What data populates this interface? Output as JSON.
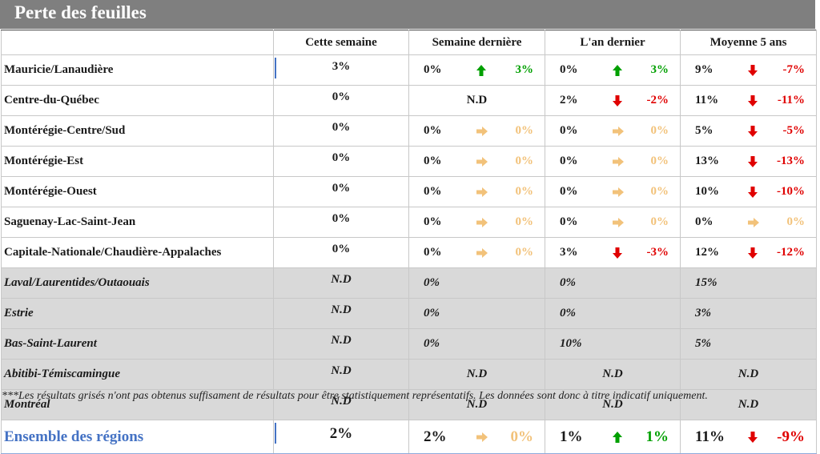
{
  "title": "Perte des feuilles",
  "headers": [
    "Cette semaine",
    "Semaine dernière",
    "L'an dernier",
    "Moyenne 5 ans"
  ],
  "colors": {
    "up": "#00a000",
    "down": "#e00000",
    "flat": "#f2c27a",
    "header_bar": "#7f7f7f",
    "grey_row": "#d9d9d9",
    "accent": "#4472c4"
  },
  "rows": [
    {
      "region": "Mauricie/Lanaudière",
      "cw": "3%",
      "sd": {
        "v": "0%",
        "dir": "up",
        "d": "3%"
      },
      "ad": {
        "v": "0%",
        "dir": "up",
        "d": "3%"
      },
      "m5": {
        "v": "9%",
        "dir": "down",
        "d": "-7%"
      }
    },
    {
      "region": "Centre-du-Québec",
      "cw": "0%",
      "sd_nd": "N.D",
      "ad": {
        "v": "2%",
        "dir": "down",
        "d": "-2%"
      },
      "m5": {
        "v": "11%",
        "dir": "down",
        "d": "-11%"
      }
    },
    {
      "region": "Montérégie-Centre/Sud",
      "cw": "0%",
      "sd": {
        "v": "0%",
        "dir": "flat",
        "d": "0%"
      },
      "ad": {
        "v": "0%",
        "dir": "flat",
        "d": "0%"
      },
      "m5": {
        "v": "5%",
        "dir": "down",
        "d": "-5%"
      }
    },
    {
      "region": "Montérégie-Est",
      "cw": "0%",
      "sd": {
        "v": "0%",
        "dir": "flat",
        "d": "0%"
      },
      "ad": {
        "v": "0%",
        "dir": "flat",
        "d": "0%"
      },
      "m5": {
        "v": "13%",
        "dir": "down",
        "d": "-13%"
      }
    },
    {
      "region": "Montérégie-Ouest",
      "cw": "0%",
      "sd": {
        "v": "0%",
        "dir": "flat",
        "d": "0%"
      },
      "ad": {
        "v": "0%",
        "dir": "flat",
        "d": "0%"
      },
      "m5": {
        "v": "10%",
        "dir": "down",
        "d": "-10%"
      }
    },
    {
      "region": "Saguenay-Lac-Saint-Jean",
      "cw": "0%",
      "sd": {
        "v": "0%",
        "dir": "flat",
        "d": "0%"
      },
      "ad": {
        "v": "0%",
        "dir": "flat",
        "d": "0%"
      },
      "m5": {
        "v": "0%",
        "dir": "flat",
        "d": "0%"
      }
    },
    {
      "region": "Capitale-Nationale/Chaudière-Appalaches",
      "cw": "0%",
      "sd": {
        "v": "0%",
        "dir": "flat",
        "d": "0%"
      },
      "ad": {
        "v": "3%",
        "dir": "down",
        "d": "-3%"
      },
      "m5": {
        "v": "12%",
        "dir": "down",
        "d": "-12%"
      }
    }
  ],
  "grey_rows": [
    {
      "region": "Laval/Laurentides/Outaouais",
      "cw": "N.D",
      "sd": "0%",
      "ad": "0%",
      "m5": "15%"
    },
    {
      "region": "Estrie",
      "cw": "N.D",
      "sd": "0%",
      "ad": "0%",
      "m5": "3%"
    },
    {
      "region": "Bas-Saint-Laurent",
      "cw": "N.D",
      "sd": "0%",
      "ad": "10%",
      "m5": "5%"
    },
    {
      "region": "Abitibi-Témiscamingue",
      "cw": "N.D",
      "sd_nd": "N.D",
      "ad_nd": "N.D",
      "m5_nd": "N.D"
    },
    {
      "region": "Montréal",
      "cw": "N.D",
      "sd_nd": "N.D",
      "ad_nd": "N.D",
      "m5_nd": "N.D"
    }
  ],
  "total": {
    "region": "Ensemble des régions",
    "cw": "2%",
    "sd": {
      "v": "2%",
      "dir": "flat",
      "d": "0%"
    },
    "ad": {
      "v": "1%",
      "dir": "up",
      "d": "1%"
    },
    "m5": {
      "v": "11%",
      "dir": "down",
      "d": "-9%"
    }
  },
  "footnote": "***Les résultats grisés n'ont pas obtenus suffisament de résultats pour être statistiquement représentatifs. Les données sont donc à titre indicatif uniquement."
}
